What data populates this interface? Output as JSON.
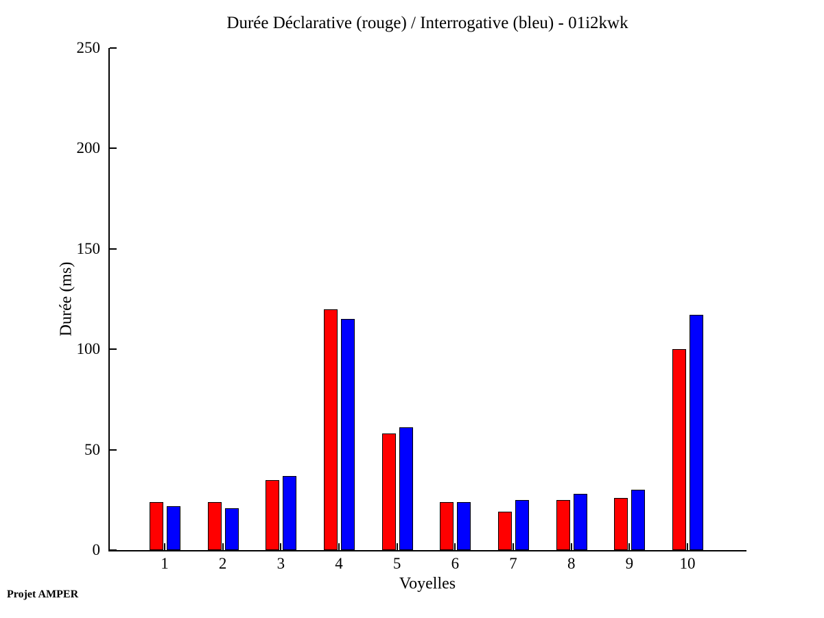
{
  "footer": "Projet AMPER",
  "colors": {
    "declarative": "#ff0000",
    "interrogative": "#0000ff",
    "axis": "#000000",
    "background": "#ffffff"
  },
  "chart_data": {
    "type": "bar",
    "title": "Durée Déclarative (rouge) / Interrogative (bleu) - 01i2kwk",
    "xlabel": "Voyelles",
    "ylabel": "Durée (ms)",
    "categories": [
      "1",
      "2",
      "3",
      "4",
      "5",
      "6",
      "7",
      "8",
      "9",
      "10"
    ],
    "series": [
      {
        "name": "Déclarative (rouge)",
        "color": "#ff0000",
        "values": [
          24,
          24,
          35,
          120,
          58,
          24,
          19,
          25,
          26,
          100
        ]
      },
      {
        "name": "Interrogative (bleu)",
        "color": "#0000ff",
        "values": [
          22,
          21,
          37,
          115,
          61,
          24,
          25,
          28,
          30,
          117
        ]
      }
    ],
    "ylim": [
      0,
      250
    ],
    "yticks": [
      0,
      50,
      100,
      150,
      200,
      250
    ],
    "grid": false,
    "legend": "none"
  }
}
